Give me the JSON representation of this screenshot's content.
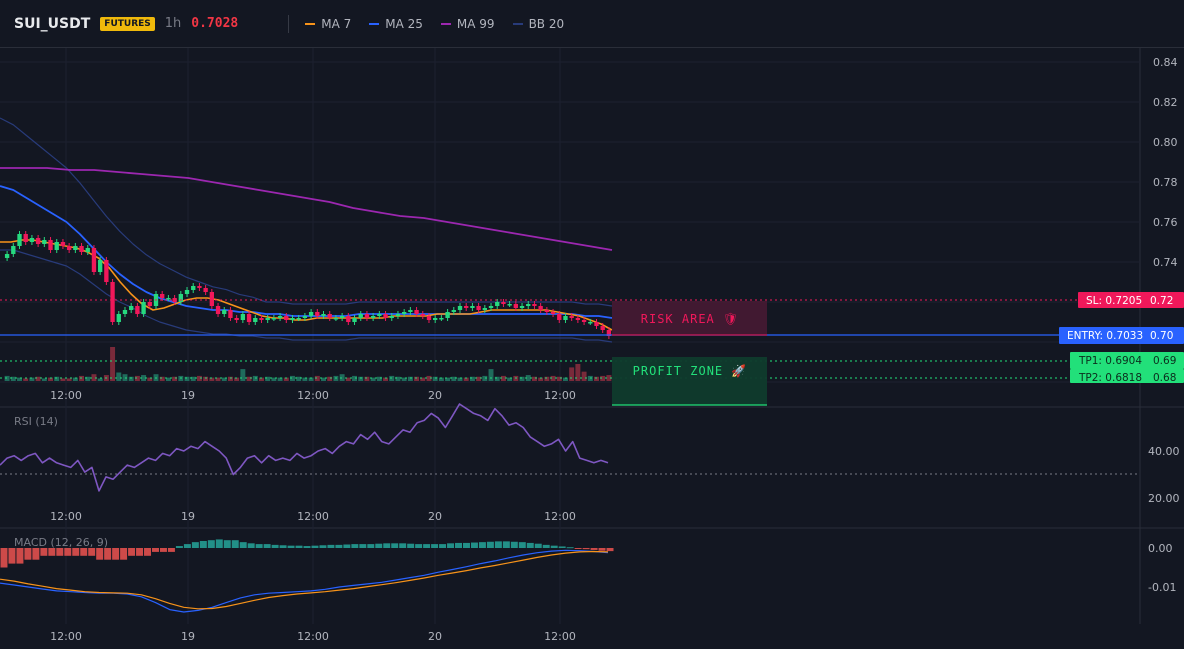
{
  "header": {
    "symbol": "SUI_USDT",
    "badge": "FUTURES",
    "timeframe": "1h",
    "last_price": "0.7028",
    "indicators": [
      {
        "name": "MA 7",
        "color": "#f7931a"
      },
      {
        "name": "MA 25",
        "color": "#2962ff"
      },
      {
        "name": "MA 99",
        "color": "#9c27b0"
      },
      {
        "name": "BB 20",
        "color": "#283b7a"
      }
    ]
  },
  "price_axis": {
    "ticks": [
      "0.84",
      "0.82",
      "0.80",
      "0.78",
      "0.76",
      "0.74",
      "0.72",
      "0.70",
      "0.69",
      "0.68"
    ]
  },
  "time_axis": {
    "ticks": [
      "12:00",
      "19",
      "12:00",
      "20",
      "12:00"
    ]
  },
  "levels": {
    "sl": {
      "label": "SL: 0.7205",
      "axis": "0.72",
      "color": "#f0185a"
    },
    "entry": {
      "label": "ENTRY: 0.7033",
      "axis": "0.70",
      "color": "#2962ff"
    },
    "tp1": {
      "label": "TP1: 0.6904",
      "axis": "0.69",
      "color": "#22e07a"
    },
    "tp2": {
      "label": "TP2: 0.6818",
      "axis": "0.68",
      "color": "#22e07a"
    }
  },
  "zones": {
    "risk": "RISK AREA 🛡",
    "profit": "PROFIT ZONE 🚀"
  },
  "rsi": {
    "title": "RSI (14)",
    "ticks": [
      "40.00",
      "20.00"
    ]
  },
  "macd": {
    "title": "MACD (12, 26, 9)",
    "ticks": [
      "0.00",
      "-0.01"
    ]
  },
  "chart_data": {
    "type": "candlestick",
    "close": [
      0.744,
      0.748,
      0.754,
      0.75,
      0.752,
      0.749,
      0.751,
      0.746,
      0.75,
      0.748,
      0.746,
      0.748,
      0.745,
      0.747,
      0.735,
      0.741,
      0.73,
      0.71,
      0.714,
      0.716,
      0.718,
      0.714,
      0.72,
      0.718,
      0.724,
      0.722,
      0.722,
      0.72,
      0.724,
      0.726,
      0.728,
      0.727,
      0.725,
      0.718,
      0.714,
      0.716,
      0.712,
      0.711,
      0.714,
      0.71,
      0.712,
      0.711,
      0.712,
      0.712,
      0.713,
      0.711,
      0.712,
      0.712,
      0.713,
      0.715,
      0.713,
      0.714,
      0.712,
      0.712,
      0.713,
      0.71,
      0.712,
      0.714,
      0.712,
      0.713,
      0.714,
      0.712,
      0.713,
      0.714,
      0.715,
      0.716,
      0.714,
      0.713,
      0.711,
      0.712,
      0.712,
      0.715,
      0.716,
      0.718,
      0.717,
      0.718,
      0.716,
      0.717,
      0.718,
      0.72,
      0.719,
      0.719,
      0.717,
      0.718,
      0.719,
      0.718,
      0.716,
      0.715,
      0.714,
      0.711,
      0.713,
      0.712,
      0.711,
      0.71,
      0.71,
      0.708,
      0.706,
      0.703
    ],
    "volume": [
      6,
      5,
      4,
      3,
      4,
      5,
      3,
      4,
      5,
      3,
      3,
      4,
      6,
      5,
      8,
      3,
      7,
      40,
      10,
      8,
      5,
      6,
      7,
      4,
      8,
      5,
      4,
      5,
      6,
      5,
      5,
      6,
      5,
      4,
      4,
      4,
      5,
      4,
      14,
      5,
      6,
      4,
      5,
      4,
      4,
      4,
      6,
      5,
      4,
      4,
      6,
      4,
      5,
      6,
      8,
      4,
      6,
      5,
      5,
      4,
      5,
      4,
      6,
      5,
      4,
      5,
      5,
      4,
      6,
      5,
      4,
      4,
      5,
      4,
      4,
      5,
      5,
      6,
      14,
      5,
      6,
      4,
      6,
      5,
      7,
      5,
      4,
      5,
      6,
      5,
      4,
      16,
      20,
      11,
      6,
      5,
      6,
      7
    ],
    "rsi": [
      34,
      37,
      38,
      36,
      38,
      39,
      35,
      37,
      35,
      34,
      33,
      36,
      31,
      33,
      23,
      29,
      28,
      31,
      34,
      33,
      35,
      37,
      36,
      39,
      38,
      41,
      40,
      42,
      41,
      44,
      42,
      40,
      37,
      30,
      33,
      37,
      38,
      35,
      38,
      36,
      37,
      36,
      39,
      37,
      38,
      40,
      41,
      39,
      42,
      44,
      43,
      47,
      45,
      48,
      44,
      43,
      46,
      49,
      48,
      52,
      53,
      56,
      54,
      50,
      55,
      60,
      58,
      56,
      55,
      53,
      58,
      55,
      51,
      52,
      50,
      46,
      44,
      42,
      43,
      45,
      40,
      44,
      37,
      36,
      35,
      36,
      35
    ],
    "ma7": [
      0.75,
      0.75,
      0.751,
      0.751,
      0.75,
      0.749,
      0.748,
      0.747,
      0.745,
      0.742,
      0.737,
      0.73,
      0.724,
      0.719,
      0.716,
      0.717,
      0.719,
      0.721,
      0.722,
      0.722,
      0.721,
      0.719,
      0.717,
      0.715,
      0.713,
      0.712,
      0.712,
      0.711,
      0.711,
      0.712,
      0.712,
      0.712,
      0.712,
      0.712,
      0.712,
      0.712,
      0.713,
      0.713,
      0.713,
      0.713,
      0.714,
      0.714,
      0.714,
      0.714,
      0.715,
      0.716,
      0.716,
      0.716,
      0.716,
      0.716,
      0.716,
      0.715,
      0.714,
      0.713,
      0.711,
      0.709,
      0.706
    ],
    "ma25": [
      0.778,
      0.776,
      0.772,
      0.768,
      0.764,
      0.76,
      0.754,
      0.747,
      0.74,
      0.734,
      0.729,
      0.725,
      0.722,
      0.72,
      0.718,
      0.717,
      0.716,
      0.716,
      0.715,
      0.715,
      0.714,
      0.714,
      0.713,
      0.713,
      0.713,
      0.713,
      0.713,
      0.714,
      0.714,
      0.714,
      0.714,
      0.714,
      0.714,
      0.714,
      0.714,
      0.714,
      0.714,
      0.714,
      0.714,
      0.714,
      0.714,
      0.714,
      0.714,
      0.714,
      0.713,
      0.713,
      0.712
    ],
    "ma99": [
      0.787,
      0.787,
      0.787,
      0.786,
      0.786,
      0.785,
      0.784,
      0.783,
      0.782,
      0.78,
      0.778,
      0.776,
      0.774,
      0.772,
      0.77,
      0.767,
      0.765,
      0.763,
      0.762,
      0.76,
      0.758,
      0.756,
      0.754,
      0.752,
      0.75,
      0.748,
      0.746
    ],
    "macd_hist": [
      -0.005,
      -0.004,
      -0.004,
      -0.003,
      -0.003,
      -0.002,
      -0.002,
      -0.002,
      -0.002,
      -0.002,
      -0.002,
      -0.002,
      -0.003,
      -0.003,
      -0.003,
      -0.003,
      -0.002,
      -0.002,
      -0.002,
      -0.001,
      -0.001,
      -0.001,
      0.0005,
      0.001,
      0.0015,
      0.0018,
      0.002,
      0.0022,
      0.002,
      0.002,
      0.0015,
      0.0012,
      0.001,
      0.001,
      0.0008,
      0.0007,
      0.0006,
      0.0006,
      0.0005,
      0.0006,
      0.0007,
      0.0008,
      0.0008,
      0.0009,
      0.001,
      0.001,
      0.001,
      0.0011,
      0.0012,
      0.0012,
      0.0012,
      0.0011,
      0.001,
      0.001,
      0.001,
      0.001,
      0.0012,
      0.0013,
      0.0013,
      0.0014,
      0.0015,
      0.0016,
      0.0017,
      0.0017,
      0.0016,
      0.0015,
      0.0013,
      0.0011,
      0.0008,
      0.0006,
      0.0004,
      0.0002,
      -0.0001,
      -0.0003,
      -0.0005,
      -0.0007,
      -0.0008
    ],
    "macd_line": [
      -0.009,
      -0.0095,
      -0.01,
      -0.0105,
      -0.011,
      -0.0112,
      -0.0114,
      -0.0116,
      -0.0116,
      -0.0118,
      -0.0125,
      -0.014,
      -0.0158,
      -0.0164,
      -0.016,
      -0.0152,
      -0.014,
      -0.0128,
      -0.012,
      -0.0116,
      -0.0114,
      -0.0112,
      -0.011,
      -0.0106,
      -0.01,
      -0.0096,
      -0.0092,
      -0.0088,
      -0.0082,
      -0.0076,
      -0.007,
      -0.0062,
      -0.0055,
      -0.0048,
      -0.004,
      -0.0033,
      -0.0025,
      -0.0018,
      -0.0012,
      -0.0008,
      -0.0006,
      -0.0007,
      -0.0009,
      -0.0012
    ],
    "signal_line": [
      -0.008,
      -0.0085,
      -0.0092,
      -0.0098,
      -0.0104,
      -0.0108,
      -0.0112,
      -0.0114,
      -0.0115,
      -0.0116,
      -0.012,
      -0.013,
      -0.0142,
      -0.0152,
      -0.0156,
      -0.0155,
      -0.015,
      -0.0142,
      -0.0134,
      -0.0127,
      -0.0122,
      -0.0118,
      -0.0115,
      -0.0112,
      -0.0108,
      -0.0104,
      -0.0099,
      -0.0094,
      -0.0089,
      -0.0083,
      -0.0077,
      -0.007,
      -0.0064,
      -0.0058,
      -0.0051,
      -0.0045,
      -0.0038,
      -0.0031,
      -0.0024,
      -0.0018,
      -0.0013,
      -0.001,
      -0.0009,
      -0.001
    ]
  }
}
